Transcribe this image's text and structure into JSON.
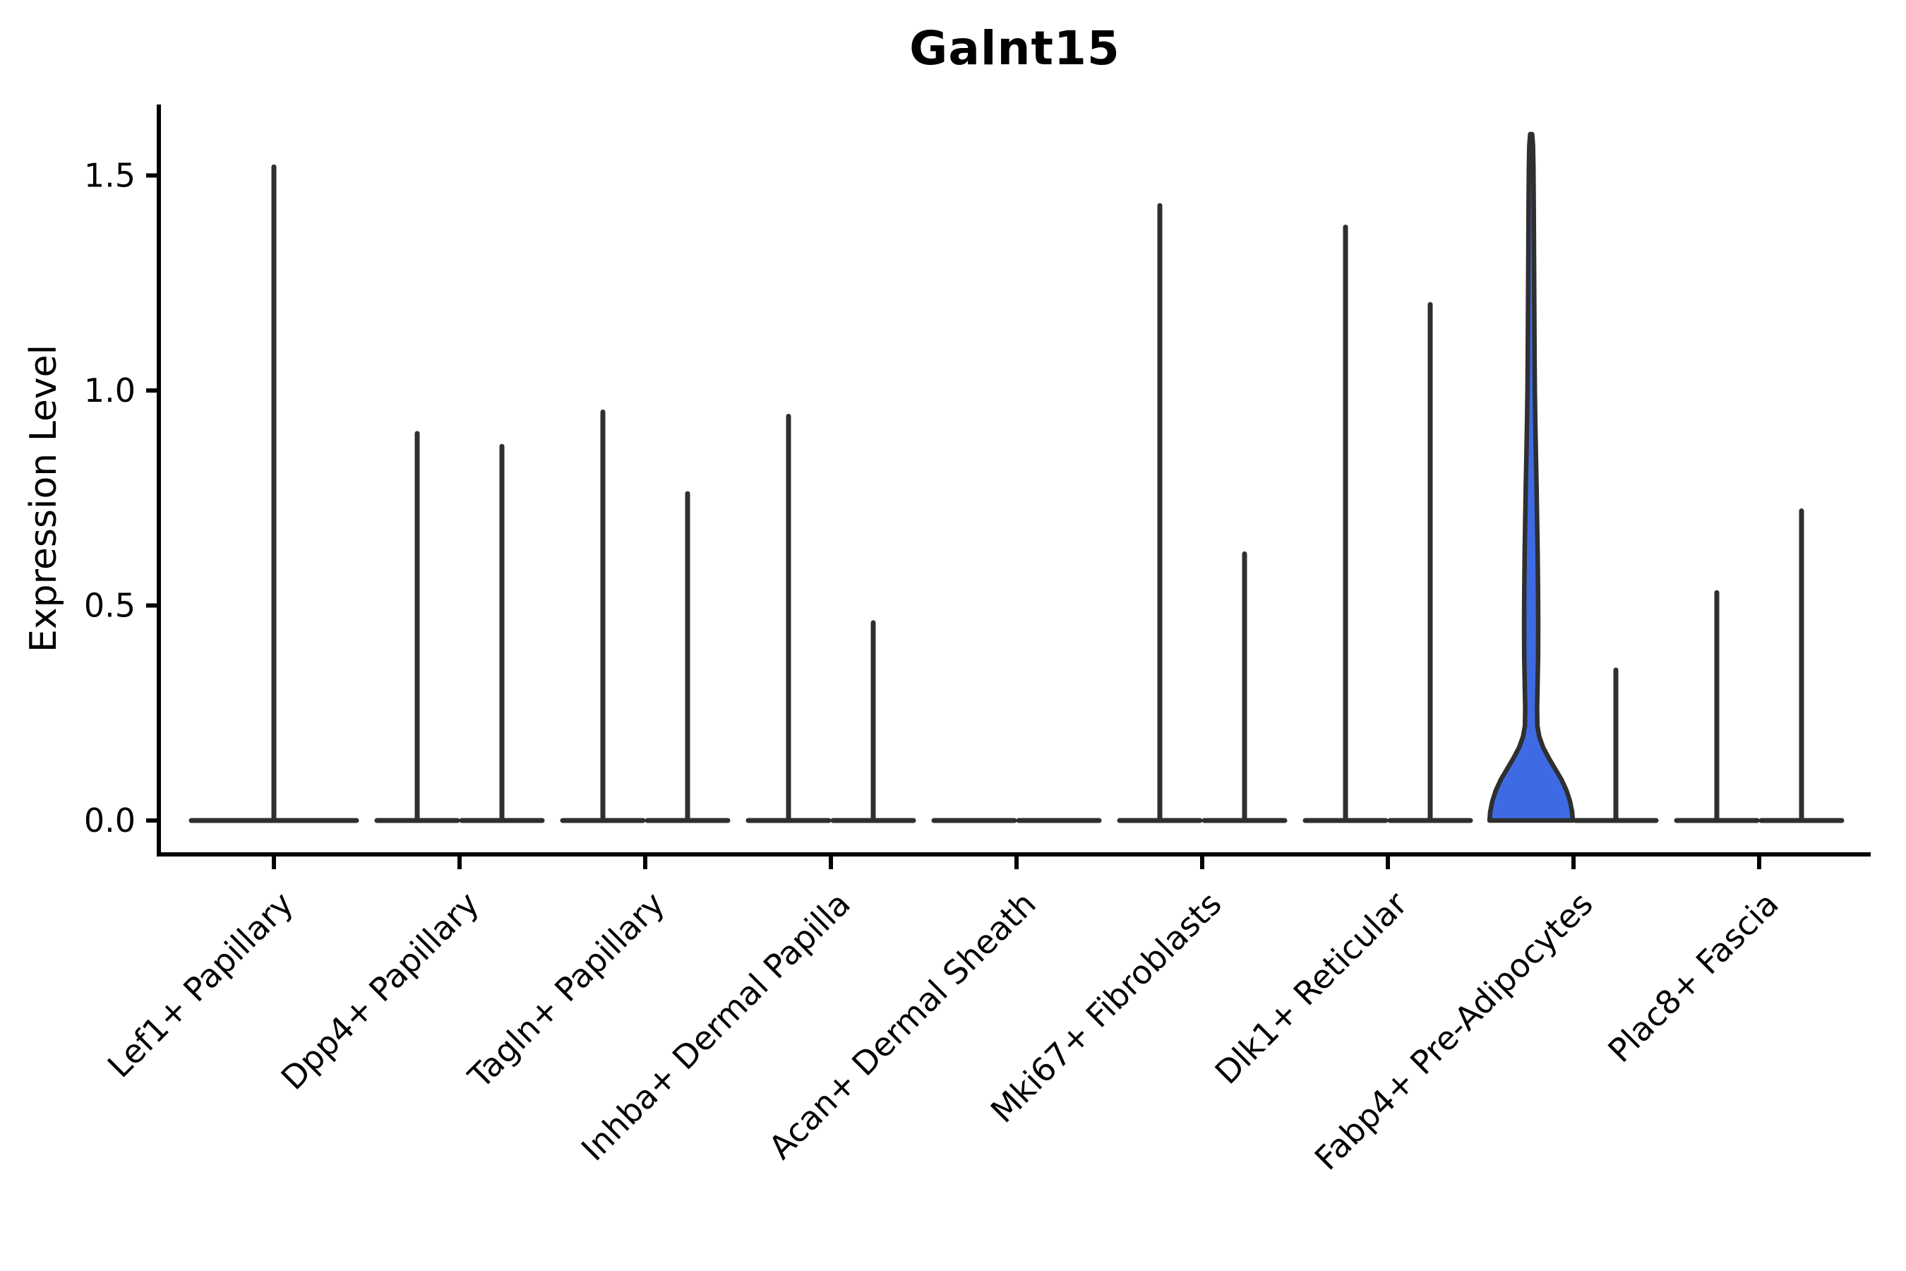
{
  "chart_data": {
    "type": "violin",
    "title": "Galnt15",
    "ylabel": "Expression Level",
    "xlabel": "",
    "grid": false,
    "legend": "none",
    "ylim": [
      -0.08,
      1.665
    ],
    "ytick_values": [
      0.0,
      0.5,
      1.0,
      1.5
    ],
    "ytick_labels": [
      "0.0",
      "0.5",
      "1.0",
      "1.5"
    ],
    "colors": {
      "axis": "#000000",
      "text": "#000000",
      "violin_line": "#2F2F2F",
      "violin_fill": "#3E6BE4"
    },
    "categories": [
      {
        "label": "Lef1+ Papillary",
        "violins": [
          {
            "slot": "full",
            "max": 1.52,
            "filled": false
          }
        ]
      },
      {
        "label": "Dpp4+ Papillary",
        "violins": [
          {
            "slot": "left",
            "max": 0.9,
            "filled": false
          },
          {
            "slot": "right",
            "max": 0.87,
            "filled": false
          }
        ]
      },
      {
        "label": "Tagln+ Papillary",
        "violins": [
          {
            "slot": "left",
            "max": 0.95,
            "filled": false
          },
          {
            "slot": "right",
            "max": 0.76,
            "filled": false
          }
        ]
      },
      {
        "label": "Inhba+ Dermal Papilla",
        "violins": [
          {
            "slot": "left",
            "max": 0.94,
            "filled": false
          },
          {
            "slot": "right",
            "max": 0.46,
            "filled": false
          }
        ]
      },
      {
        "label": "Acan+ Dermal Sheath",
        "violins": [
          {
            "slot": "left",
            "max": 0.0,
            "filled": false
          },
          {
            "slot": "right",
            "max": 0.0,
            "filled": false
          }
        ]
      },
      {
        "label": "Mki67+ Fibroblasts",
        "violins": [
          {
            "slot": "left",
            "max": 1.43,
            "filled": false
          },
          {
            "slot": "right",
            "max": 0.62,
            "filled": false
          }
        ]
      },
      {
        "label": "Dlk1+ Reticular",
        "violins": [
          {
            "slot": "left",
            "max": 1.38,
            "filled": false
          },
          {
            "slot": "right",
            "max": 1.2,
            "filled": false
          }
        ]
      },
      {
        "label": "Fabp4+ Pre-Adipocytes",
        "violins": [
          {
            "slot": "left",
            "max": 1.6,
            "filled": true
          },
          {
            "slot": "right",
            "max": 0.35,
            "filled": false
          }
        ]
      },
      {
        "label": "Plac8+ Fascia",
        "violins": [
          {
            "slot": "left",
            "max": 0.53,
            "filled": false
          },
          {
            "slot": "right",
            "max": 0.72,
            "filled": false
          }
        ]
      }
    ],
    "filled_violin_profile_value_halfwidth": [
      [
        0.0,
        59.0
      ],
      [
        0.02,
        58.0
      ],
      [
        0.045,
        55.0
      ],
      [
        0.07,
        50.0
      ],
      [
        0.095,
        43.0
      ],
      [
        0.12,
        34.0
      ],
      [
        0.145,
        25.0
      ],
      [
        0.17,
        17.0
      ],
      [
        0.195,
        11.5
      ],
      [
        0.22,
        8.8
      ],
      [
        0.26,
        8.4
      ],
      [
        0.31,
        9.0
      ],
      [
        0.38,
        9.8
      ],
      [
        0.46,
        10.0
      ],
      [
        0.54,
        9.7
      ],
      [
        0.62,
        9.2
      ],
      [
        0.7,
        8.4
      ],
      [
        0.78,
        7.6
      ],
      [
        0.86,
        6.6
      ],
      [
        0.93,
        5.8
      ],
      [
        1.0,
        5.2
      ],
      [
        1.08,
        4.8
      ],
      [
        1.17,
        4.5
      ],
      [
        1.26,
        4.2
      ],
      [
        1.35,
        3.9
      ],
      [
        1.44,
        3.6
      ],
      [
        1.52,
        3.2
      ],
      [
        1.57,
        2.6
      ],
      [
        1.596,
        1.4
      ]
    ]
  }
}
